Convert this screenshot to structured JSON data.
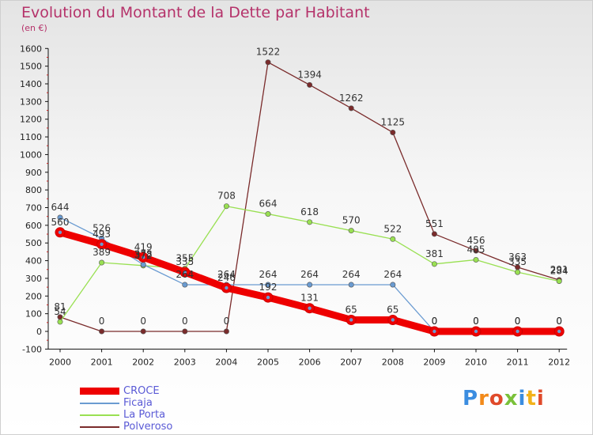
{
  "chart_data": {
    "type": "line",
    "title": "Evolution du Montant de la Dette par Habitant",
    "subtitle": "(en €)",
    "xlabel": "",
    "ylabel": "",
    "categories": [
      "2000",
      "2001",
      "2002",
      "2003",
      "2004",
      "2005",
      "2006",
      "2007",
      "2008",
      "2009",
      "2010",
      "2011",
      "2012"
    ],
    "ylim": [
      -100,
      1600
    ],
    "yticks": [
      -100,
      0,
      100,
      200,
      300,
      400,
      500,
      600,
      700,
      800,
      900,
      1000,
      1100,
      1200,
      1300,
      1400,
      1500,
      1600
    ],
    "grid": false,
    "legend_position": "bottom-left",
    "series": [
      {
        "name": "CROCE",
        "color": "#ee0000",
        "values": [
          560,
          493,
          419,
          335,
          246,
          192,
          131,
          65,
          65,
          0,
          0,
          0,
          0
        ],
        "labels": [
          "560",
          "493",
          "419",
          "335",
          "246",
          "192",
          "131",
          "65",
          "65",
          "0",
          "0",
          "0",
          "0"
        ]
      },
      {
        "name": "Ficaja",
        "color": "#6a9bd1",
        "values": [
          644,
          526,
          378,
          264,
          264,
          264,
          264,
          264,
          264,
          0,
          0,
          0,
          0
        ],
        "labels": [
          "644",
          "526",
          "378",
          "264",
          "264",
          "264",
          "264",
          "264",
          "264",
          "0",
          "0",
          "0",
          "0"
        ]
      },
      {
        "name": "La Porta",
        "color": "#99e052",
        "values": [
          54,
          389,
          372,
          355,
          708,
          664,
          618,
          570,
          522,
          381,
          405,
          335,
          284
        ],
        "labels": [
          "54",
          "389",
          "372",
          "355",
          "708",
          "664",
          "618",
          "570",
          "522",
          "381",
          "405",
          "335",
          "284"
        ]
      },
      {
        "name": "Polveroso",
        "color": "#7a2b2b",
        "values": [
          81,
          0,
          0,
          0,
          0,
          1522,
          1394,
          1262,
          1125,
          551,
          456,
          363,
          291
        ],
        "labels": [
          "81",
          "0",
          "0",
          "0",
          "0",
          "1522",
          "1394",
          "1262",
          "1125",
          "551",
          "456",
          "363",
          "291"
        ]
      }
    ]
  },
  "brand": {
    "name": "Proxiti"
  }
}
